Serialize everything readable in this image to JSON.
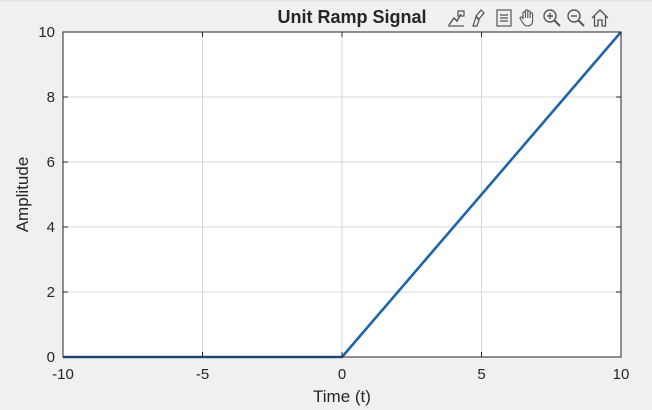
{
  "toolbar": {
    "icons": [
      "data-tips-icon",
      "brush-icon",
      "legend-icon",
      "pan-icon",
      "zoom-in-icon",
      "zoom-out-icon",
      "home-icon"
    ]
  },
  "colors": {
    "figure_background": "#f0f0f0",
    "axes_background": "#ffffff",
    "line": "#1f64a8",
    "grid": "#d9d9d9",
    "text": "#262626"
  },
  "chart_data": {
    "type": "line",
    "title": "Unit Ramp Signal",
    "xlabel": "Time (t)",
    "ylabel": "Amplitude",
    "xlim": [
      -10,
      10
    ],
    "ylim": [
      0,
      10
    ],
    "xticks": [
      -10,
      -5,
      0,
      5,
      10
    ],
    "yticks": [
      0,
      2,
      4,
      6,
      8,
      10
    ],
    "grid": true,
    "series": [
      {
        "x": [
          -10,
          0,
          10
        ],
        "y": [
          0,
          0,
          10
        ]
      }
    ]
  }
}
